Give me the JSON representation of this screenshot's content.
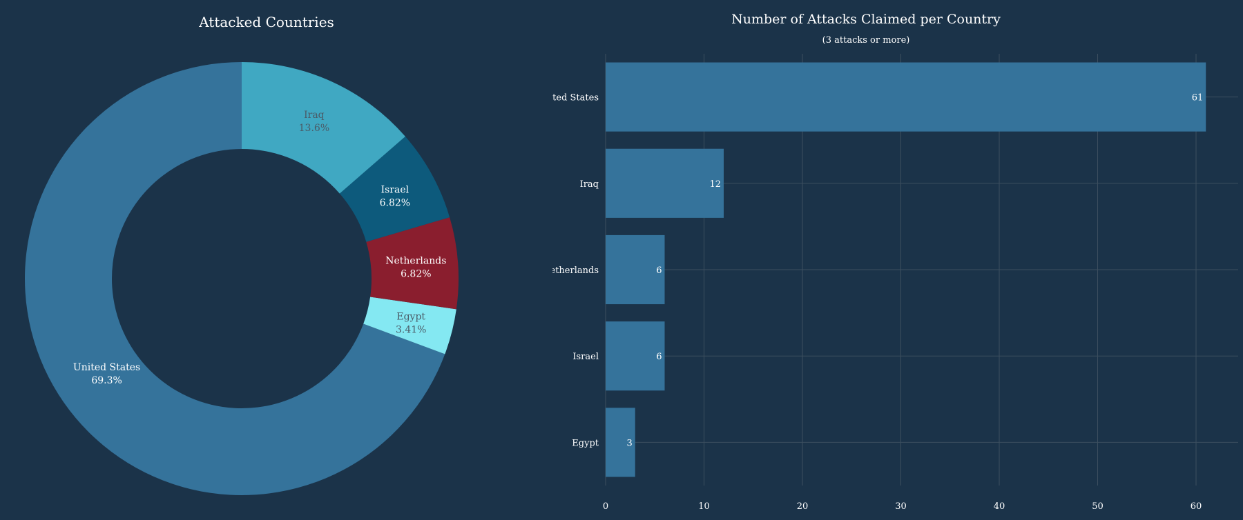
{
  "page": {
    "background": "#1b3349",
    "text_color": "#ffffff",
    "grid_color": "#3d4f5f"
  },
  "chart_data": [
    {
      "type": "pie",
      "donut": true,
      "title": "Attacked Countries",
      "slices": [
        {
          "label": "United States",
          "percent_label": "69.3%",
          "value": 69.3,
          "color": "#35739b",
          "text_color": "#ffffff"
        },
        {
          "label": "Egypt",
          "percent_label": "3.41%",
          "value": 3.41,
          "color": "#84e8f2",
          "text_color": "#4b5a66"
        },
        {
          "label": "Netherlands",
          "percent_label": "6.82%",
          "value": 6.82,
          "color": "#8a1e2e",
          "text_color": "#ffffff"
        },
        {
          "label": "Israel",
          "percent_label": "6.82%",
          "value": 6.82,
          "color": "#0d5a7c",
          "text_color": "#ffffff"
        },
        {
          "label": "Iraq",
          "percent_label": "13.6%",
          "value": 13.6,
          "color": "#40a8c2",
          "text_color": "#4b5a66"
        }
      ],
      "direction": "counterclockwise",
      "start_angle_deg": 0
    },
    {
      "type": "bar",
      "orientation": "horizontal",
      "title": "Number of Attacks Claimed per Country",
      "subtitle": "(3 attacks or more)",
      "categories": [
        "United States",
        "Iraq",
        "Netherlands",
        "Israel",
        "Egypt"
      ],
      "values": [
        61,
        12,
        6,
        6,
        3
      ],
      "data_labels": [
        "61",
        "12",
        "6",
        "6",
        "3"
      ],
      "bar_color": "#35739b",
      "xlim": [
        0,
        64
      ],
      "xticks": [
        0,
        10,
        20,
        30,
        40,
        50,
        60
      ],
      "xtick_labels": [
        "0",
        "10",
        "20",
        "30",
        "40",
        "50",
        "60"
      ],
      "grid": true,
      "xlabel": "",
      "ylabel": ""
    }
  ]
}
